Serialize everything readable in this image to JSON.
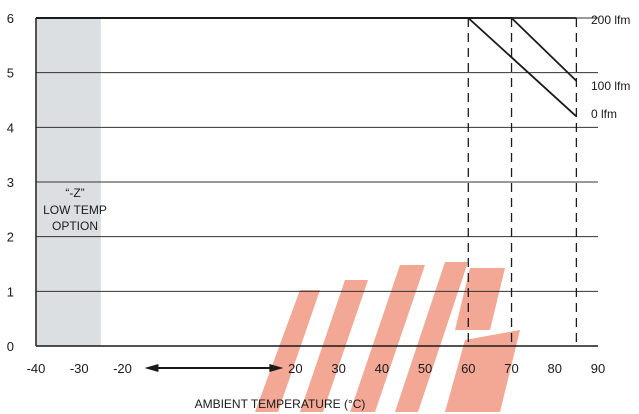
{
  "chart_data": {
    "type": "line",
    "title": "",
    "xlabel": "AMBIENT TEMPERATURE (°C)",
    "ylabel": "",
    "xlim": [
      -40,
      90
    ],
    "ylim": [
      0,
      6
    ],
    "xticks": [
      -40,
      -30,
      -20,
      20,
      30,
      40,
      50,
      60,
      70,
      80,
      90
    ],
    "yticks": [
      0,
      1,
      2,
      3,
      4,
      5,
      6
    ],
    "grid": "horizontal",
    "series": [
      {
        "name": "200 lfm",
        "x": [
          -40,
          85
        ],
        "y": [
          6,
          6
        ]
      },
      {
        "name": "100 lfm",
        "x": [
          -40,
          70,
          85
        ],
        "y": [
          6,
          6,
          4.85
        ]
      },
      {
        "name": "0 lfm",
        "x": [
          -40,
          60,
          85
        ],
        "y": [
          6,
          6,
          4.2
        ]
      }
    ],
    "reference_lines_x": [
      60,
      70,
      85
    ],
    "shaded_region": {
      "x": [
        -40,
        -25
      ],
      "label_lines": [
        "“-Z”",
        "LOW TEMP",
        "OPTION"
      ],
      "color": "#dcdfe1"
    },
    "arrow_range": [
      -20,
      20
    ],
    "colors": {
      "line": "#1a1a1a",
      "grid": "#333333",
      "shade": "#dcdfe1",
      "watermark": "#f08a72"
    }
  }
}
